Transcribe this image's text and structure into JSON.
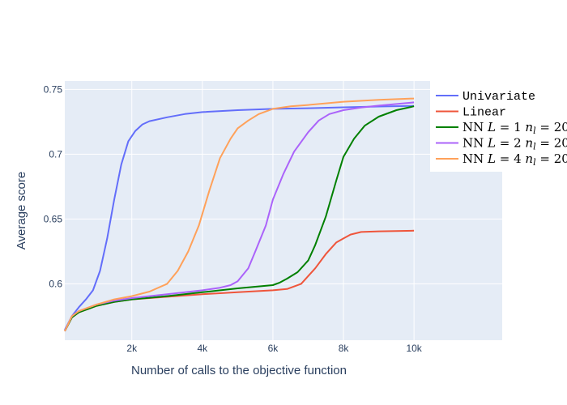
{
  "chart_data": {
    "type": "line",
    "title": "",
    "xlabel": "Number of calls to the objective function",
    "ylabel": "Average score",
    "xlim": [
      100,
      12500
    ],
    "ylim": [
      0.5565,
      0.7565
    ],
    "x_ticks": [
      {
        "value": 2000,
        "label": "2k"
      },
      {
        "value": 4000,
        "label": "4k"
      },
      {
        "value": 6000,
        "label": "6k"
      },
      {
        "value": 8000,
        "label": "8k"
      },
      {
        "value": 10000,
        "label": "10k"
      }
    ],
    "y_ticks": [
      {
        "value": 0.6,
        "label": "0.6"
      },
      {
        "value": 0.65,
        "label": "0.65"
      },
      {
        "value": 0.7,
        "label": "0.7"
      },
      {
        "value": 0.75,
        "label": "0.75"
      }
    ],
    "grid": true,
    "background": "#e5ecf6",
    "legend_position": "top-right",
    "series": [
      {
        "name": "Univariate",
        "label_style": "mono",
        "color": "#636efa",
        "x": [
          100,
          300,
          500,
          700,
          900,
          1100,
          1300,
          1500,
          1700,
          1900,
          2100,
          2300,
          2500,
          3000,
          3500,
          4000,
          5000,
          6000,
          7000,
          8000,
          9000,
          10000
        ],
        "y": [
          0.5645,
          0.575,
          0.582,
          0.588,
          0.595,
          0.61,
          0.635,
          0.665,
          0.692,
          0.71,
          0.718,
          0.723,
          0.7255,
          0.7285,
          0.731,
          0.7325,
          0.734,
          0.735,
          0.7355,
          0.7362,
          0.7368,
          0.7373
        ]
      },
      {
        "name": "Linear",
        "label_style": "mono",
        "color": "#ef553b",
        "x": [
          100,
          300,
          500,
          800,
          1000,
          1500,
          2000,
          3000,
          4000,
          5000,
          6000,
          6400,
          6800,
          7200,
          7500,
          7800,
          8000,
          8200,
          8500,
          9000,
          10000
        ],
        "y": [
          0.5635,
          0.574,
          0.578,
          0.581,
          0.583,
          0.586,
          0.588,
          0.59,
          0.592,
          0.5935,
          0.595,
          0.596,
          0.6,
          0.612,
          0.623,
          0.632,
          0.635,
          0.638,
          0.64,
          0.6405,
          0.641
        ]
      },
      {
        "name": "NN L = 1 n_l = 20",
        "label_parts": [
          "NN ",
          "L",
          " = 1 ",
          "n",
          "l",
          " = 20"
        ],
        "color": "#008000",
        "x": [
          100,
          300,
          500,
          800,
          1000,
          1500,
          2000,
          3000,
          4000,
          5000,
          6000,
          6200,
          6400,
          6700,
          7000,
          7200,
          7500,
          7800,
          8000,
          8300,
          8600,
          9000,
          9500,
          10000
        ],
        "y": [
          0.5635,
          0.574,
          0.578,
          0.581,
          0.583,
          0.586,
          0.588,
          0.5905,
          0.5935,
          0.5965,
          0.599,
          0.601,
          0.604,
          0.609,
          0.618,
          0.63,
          0.652,
          0.68,
          0.698,
          0.712,
          0.722,
          0.729,
          0.734,
          0.737
        ]
      },
      {
        "name": "NN L = 2 n_l = 20",
        "label_parts": [
          "NN ",
          "L",
          " = 2 ",
          "n",
          "l",
          " = 20"
        ],
        "color": "#ab63fa",
        "x": [
          100,
          300,
          500,
          800,
          1000,
          1500,
          2000,
          3000,
          4000,
          4500,
          4800,
          5000,
          5300,
          5500,
          5800,
          6000,
          6300,
          6600,
          7000,
          7300,
          7600,
          8000,
          8500,
          9000,
          10000
        ],
        "y": [
          0.5635,
          0.575,
          0.579,
          0.582,
          0.584,
          0.587,
          0.589,
          0.592,
          0.595,
          0.597,
          0.599,
          0.602,
          0.612,
          0.625,
          0.645,
          0.665,
          0.685,
          0.702,
          0.717,
          0.726,
          0.731,
          0.734,
          0.736,
          0.7375,
          0.74
        ]
      },
      {
        "name": "NN L = 4 n_l = 20",
        "label_parts": [
          "NN ",
          "L",
          " = 4 ",
          "n",
          "l",
          " = 20"
        ],
        "color": "#ffa15a",
        "x": [
          100,
          300,
          500,
          800,
          1000,
          1500,
          2000,
          2500,
          3000,
          3300,
          3600,
          3900,
          4200,
          4500,
          4800,
          5000,
          5300,
          5600,
          6000,
          6500,
          7000,
          8000,
          9000,
          10000
        ],
        "y": [
          0.5635,
          0.575,
          0.579,
          0.582,
          0.584,
          0.588,
          0.5905,
          0.594,
          0.6,
          0.61,
          0.625,
          0.645,
          0.672,
          0.697,
          0.712,
          0.72,
          0.726,
          0.731,
          0.735,
          0.737,
          0.738,
          0.7405,
          0.742,
          0.743
        ]
      }
    ]
  }
}
